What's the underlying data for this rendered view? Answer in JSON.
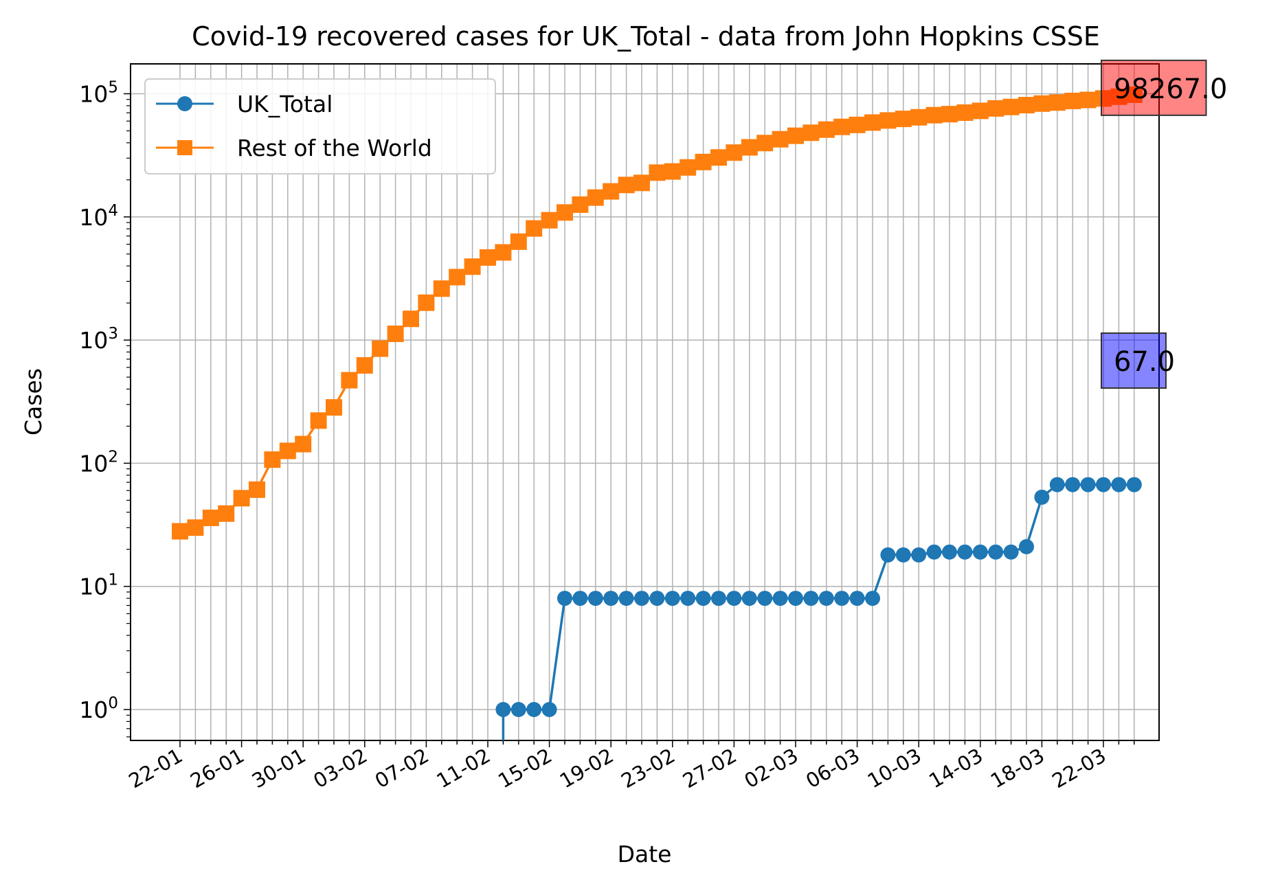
{
  "chart_data": {
    "type": "line",
    "title": "Covid-19 recovered cases for UK_Total - data from John Hopkins CSSE",
    "xlabel": "Date",
    "ylabel": "Cases",
    "y_scale": "log",
    "ylim": [
      0.55,
      180000
    ],
    "grid": true,
    "legend_position": "top-left",
    "x_tick_labels": [
      "22-01",
      "26-01",
      "30-01",
      "03-02",
      "07-02",
      "11-02",
      "15-02",
      "19-02",
      "23-02",
      "27-02",
      "02-03",
      "06-03",
      "10-03",
      "14-03",
      "18-03",
      "22-03"
    ],
    "y_ticks": [
      {
        "base": "10",
        "exp": "0"
      },
      {
        "base": "10",
        "exp": "1"
      },
      {
        "base": "10",
        "exp": "2"
      },
      {
        "base": "10",
        "exp": "3"
      },
      {
        "base": "10",
        "exp": "4"
      },
      {
        "base": "10",
        "exp": "5"
      }
    ],
    "x": [
      "22-01",
      "23-01",
      "24-01",
      "25-01",
      "26-01",
      "27-01",
      "28-01",
      "29-01",
      "30-01",
      "31-01",
      "01-02",
      "02-02",
      "03-02",
      "04-02",
      "05-02",
      "06-02",
      "07-02",
      "08-02",
      "09-02",
      "10-02",
      "11-02",
      "12-02",
      "13-02",
      "14-02",
      "15-02",
      "16-02",
      "17-02",
      "18-02",
      "19-02",
      "20-02",
      "21-02",
      "22-02",
      "23-02",
      "24-02",
      "25-02",
      "26-02",
      "27-02",
      "28-02",
      "29-02",
      "01-03",
      "02-03",
      "03-03",
      "04-03",
      "05-03",
      "06-03",
      "07-03",
      "08-03",
      "09-03",
      "10-03",
      "11-03",
      "12-03",
      "13-03",
      "14-03",
      "15-03",
      "16-03",
      "17-03",
      "18-03",
      "19-03",
      "20-03",
      "21-03",
      "22-03",
      "23-03",
      "24-03"
    ],
    "series": [
      {
        "name": "UK_Total",
        "color": "#1f77b4",
        "marker": "circle",
        "values": [
          0,
          0,
          0,
          0,
          0,
          0,
          0,
          0,
          0,
          0,
          0,
          0,
          0,
          0,
          0,
          0,
          0,
          0,
          0,
          0,
          0,
          1,
          1,
          1,
          1,
          8,
          8,
          8,
          8,
          8,
          8,
          8,
          8,
          8,
          8,
          8,
          8,
          8,
          8,
          8,
          8,
          8,
          8,
          8,
          8,
          8,
          18,
          18,
          18,
          19,
          19,
          19,
          19,
          19,
          19,
          21,
          53,
          67,
          67,
          67,
          67,
          67,
          67
        ]
      },
      {
        "name": "Rest of the World",
        "color": "#ff7f0e",
        "marker": "square",
        "values": [
          28,
          30,
          36,
          39,
          52,
          61,
          107,
          126,
          143,
          222,
          284,
          472,
          623,
          852,
          1124,
          1487,
          2011,
          2616,
          3244,
          3946,
          4683,
          5150,
          6295,
          8058,
          9395,
          10865,
          12583,
          14352,
          16121,
          18177,
          18890,
          22886,
          23394,
          25227,
          27905,
          30384,
          33277,
          36711,
          39782,
          42716,
          45602,
          48229,
          51171,
          53797,
          55866,
          58359,
          60695,
          62494,
          64404,
          67003,
          68324,
          70251,
          72624,
          76034,
          78088,
          80840,
          83207,
          84854,
          87420,
          89071,
          91620,
          94680,
          98267
        ]
      }
    ],
    "annotations": [
      {
        "text": "98267.0",
        "series": "Rest of the World",
        "value": 98267,
        "color": "#ff0000"
      },
      {
        "text": "67.0",
        "series": "UK_Total",
        "value": 67,
        "color": "#0000ff"
      }
    ]
  }
}
